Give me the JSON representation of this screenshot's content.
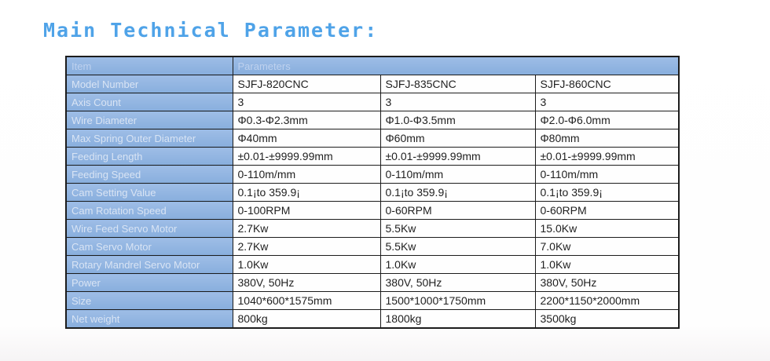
{
  "page": {
    "title": "Main Technical Parameter:"
  },
  "colors": {
    "title_blue": "#4fa3e8",
    "header_bg": "#8eb4e2",
    "header_text": "#c3d5ef",
    "border": "#1c1c1c",
    "value_text": "#1f1f1f"
  },
  "table": {
    "header": {
      "item": "Item",
      "parameters": "Parameters"
    },
    "rows": [
      {
        "label": "Model Number",
        "values": [
          "SJFJ-820CNC",
          "SJFJ-835CNC",
          "SJFJ-860CNC"
        ]
      },
      {
        "label": "Axis Count",
        "values": [
          "3",
          "3",
          "3"
        ]
      },
      {
        "label": "Wire Diameter",
        "values": [
          "Φ0.3-Φ2.3mm",
          "Φ1.0-Φ3.5mm",
          "Φ2.0-Φ6.0mm"
        ]
      },
      {
        "label": "Max Spring Outer Diameter",
        "values": [
          "Φ40mm",
          "Φ60mm",
          "Φ80mm"
        ]
      },
      {
        "label": "Feeding Length",
        "values": [
          "±0.01-±9999.99mm",
          "±0.01-±9999.99mm",
          "±0.01-±9999.99mm"
        ]
      },
      {
        "label": "Feeding Speed",
        "values": [
          "0-110m/mm",
          "0-110m/mm",
          "0-110m/mm"
        ]
      },
      {
        "label": "Cam Setting Value",
        "values": [
          "0.1¡to 359.9¡",
          "0.1¡to 359.9¡",
          "0.1¡to 359.9¡"
        ]
      },
      {
        "label": "Cam Rotation Speed",
        "values": [
          "0-100RPM",
          "0-60RPM",
          "0-60RPM"
        ]
      },
      {
        "label": "Wire Feed Servo Motor",
        "values": [
          "2.7Kw",
          "5.5Kw",
          "15.0Kw"
        ]
      },
      {
        "label": "Cam Servo Motor",
        "values": [
          "2.7Kw",
          "5.5Kw",
          "7.0Kw"
        ]
      },
      {
        "label": "Rotary Mandrel Servo Motor",
        "values": [
          "1.0Kw",
          "1.0Kw",
          "1.0Kw"
        ]
      },
      {
        "label": "Power",
        "values": [
          "380V, 50Hz",
          "380V, 50Hz",
          "380V, 50Hz"
        ]
      },
      {
        "label": "Size",
        "values": [
          "1040*600*1575mm",
          "1500*1000*1750mm",
          "2200*1150*2000mm"
        ]
      },
      {
        "label": "Net weight",
        "values": [
          "800kg",
          "1800kg",
          "3500kg"
        ]
      }
    ]
  }
}
